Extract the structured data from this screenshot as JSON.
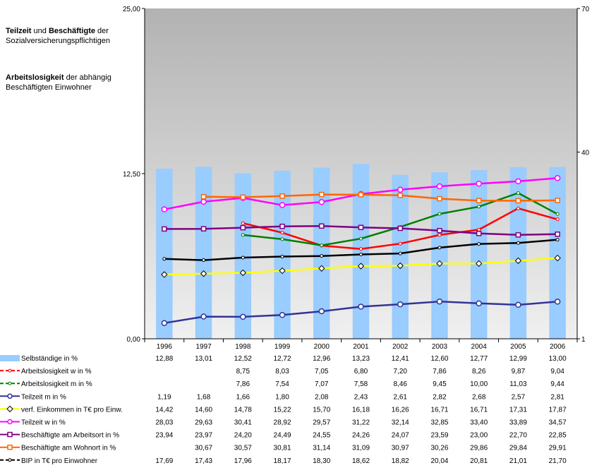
{
  "annotations": [
    {
      "bold": "Teilzeit",
      "mid": " und ",
      "bold2": "Beschäftigte",
      "rest": " der Sozialversicherungspflichtigen"
    },
    {
      "bold": "Arbeitslosigkeit",
      "rest": " der abhängig Beschäftigten Einwohner"
    }
  ],
  "chart_data": {
    "type": "bar",
    "categories": [
      "1996",
      "1997",
      "1998",
      "1999",
      "2000",
      "2001",
      "2002",
      "2003",
      "2004",
      "2005",
      "2006"
    ],
    "y_left": {
      "min": 0,
      "max": 25,
      "ticks": [
        "0,00",
        "12,50",
        "25,00"
      ]
    },
    "y_right": {
      "min": 1,
      "max": 70,
      "ticks_visible": [
        "1",
        "40",
        "70"
      ]
    },
    "grid": false,
    "legend": "table-below",
    "series": [
      {
        "name": "Selbständige in %",
        "type": "bar",
        "axis": "left",
        "color": "#99ccff",
        "marker": "none",
        "values": [
          12.88,
          13.01,
          12.52,
          12.72,
          12.96,
          13.23,
          12.41,
          12.6,
          12.77,
          12.99,
          13.0
        ],
        "labels": [
          "12,88",
          "13,01",
          "12,52",
          "12,72",
          "12,96",
          "13,23",
          "12,41",
          "12,60",
          "12,77",
          "12,99",
          "13,00"
        ]
      },
      {
        "name": "Arbeitslosigkeit w in %",
        "type": "line",
        "axis": "left",
        "color": "#ff0000",
        "marker": "dot",
        "values": [
          null,
          null,
          8.75,
          8.03,
          7.05,
          6.8,
          7.2,
          7.86,
          8.26,
          9.87,
          9.04
        ],
        "labels": [
          "",
          "",
          "8,75",
          "8,03",
          "7,05",
          "6,80",
          "7,20",
          "7,86",
          "8,26",
          "9,87",
          "9,04"
        ]
      },
      {
        "name": "Arbeitslosigkeit m in %",
        "type": "line",
        "axis": "left",
        "color": "#008000",
        "marker": "dot",
        "values": [
          null,
          null,
          7.86,
          7.54,
          7.07,
          7.58,
          8.46,
          9.45,
          10.0,
          11.03,
          9.44
        ],
        "labels": [
          "",
          "",
          "7,86",
          "7,54",
          "7,07",
          "7,58",
          "8,46",
          "9,45",
          "10,00",
          "11,03",
          "9,44"
        ]
      },
      {
        "name": "Teilzeit m in %",
        "type": "line",
        "axis": "left",
        "color": "#333399",
        "marker": "circle",
        "values": [
          1.19,
          1.68,
          1.66,
          1.8,
          2.08,
          2.43,
          2.61,
          2.82,
          2.68,
          2.57,
          2.81
        ],
        "labels": [
          "1,19",
          "1,68",
          "1,66",
          "1,80",
          "2,08",
          "2,43",
          "2,61",
          "2,82",
          "2,68",
          "2,57",
          "2,81"
        ]
      },
      {
        "name": "verf. Einkommen in T€ pro Einw.",
        "type": "line",
        "axis": "right",
        "color": "#ffff00",
        "marker": "diamond",
        "values": [
          14.42,
          14.6,
          14.78,
          15.22,
          15.7,
          16.18,
          16.26,
          16.71,
          16.71,
          17.31,
          17.87
        ],
        "labels": [
          "14,42",
          "14,60",
          "14,78",
          "15,22",
          "15,70",
          "16,18",
          "16,26",
          "16,71",
          "16,71",
          "17,31",
          "17,87"
        ]
      },
      {
        "name": "Teilzeit w in %",
        "type": "line",
        "axis": "right",
        "color": "#ff00ff",
        "marker": "circle",
        "values": [
          28.03,
          29.63,
          30.41,
          28.92,
          29.57,
          31.22,
          32.14,
          32.85,
          33.4,
          33.89,
          34.57
        ],
        "labels": [
          "28,03",
          "29,63",
          "30,41",
          "28,92",
          "29,57",
          "31,22",
          "32,14",
          "32,85",
          "33,40",
          "33,89",
          "34,57"
        ]
      },
      {
        "name": "Beschäftigte am Arbeitsort in %",
        "type": "line",
        "axis": "right",
        "color": "#800080",
        "marker": "square",
        "values": [
          23.94,
          23.97,
          24.2,
          24.49,
          24.55,
          24.26,
          24.07,
          23.59,
          23.0,
          22.7,
          22.85
        ],
        "labels": [
          "23,94",
          "23,97",
          "24,20",
          "24,49",
          "24,55",
          "24,26",
          "24,07",
          "23,59",
          "23,00",
          "22,70",
          "22,85"
        ]
      },
      {
        "name": "Beschäftigte am Wohnort in %",
        "type": "line",
        "axis": "right",
        "color": "#ff6600",
        "marker": "square",
        "values": [
          null,
          30.67,
          30.57,
          30.81,
          31.14,
          31.09,
          30.97,
          30.26,
          29.86,
          29.84,
          29.91
        ],
        "labels": [
          "",
          "30,67",
          "30,57",
          "30,81",
          "31,14",
          "31,09",
          "30,97",
          "30,26",
          "29,86",
          "29,84",
          "29,91"
        ]
      },
      {
        "name": "BIP in T€ pro Einwohner",
        "type": "line",
        "axis": "right",
        "color": "#000000",
        "marker": "dot",
        "values": [
          17.69,
          17.43,
          17.96,
          18.17,
          18.3,
          18.62,
          18.82,
          20.04,
          20.81,
          21.01,
          21.7
        ],
        "labels": [
          "17,69",
          "17,43",
          "17,96",
          "18,17",
          "18,30",
          "18,62",
          "18,82",
          "20,04",
          "20,81",
          "21,01",
          "21,70"
        ]
      }
    ]
  }
}
